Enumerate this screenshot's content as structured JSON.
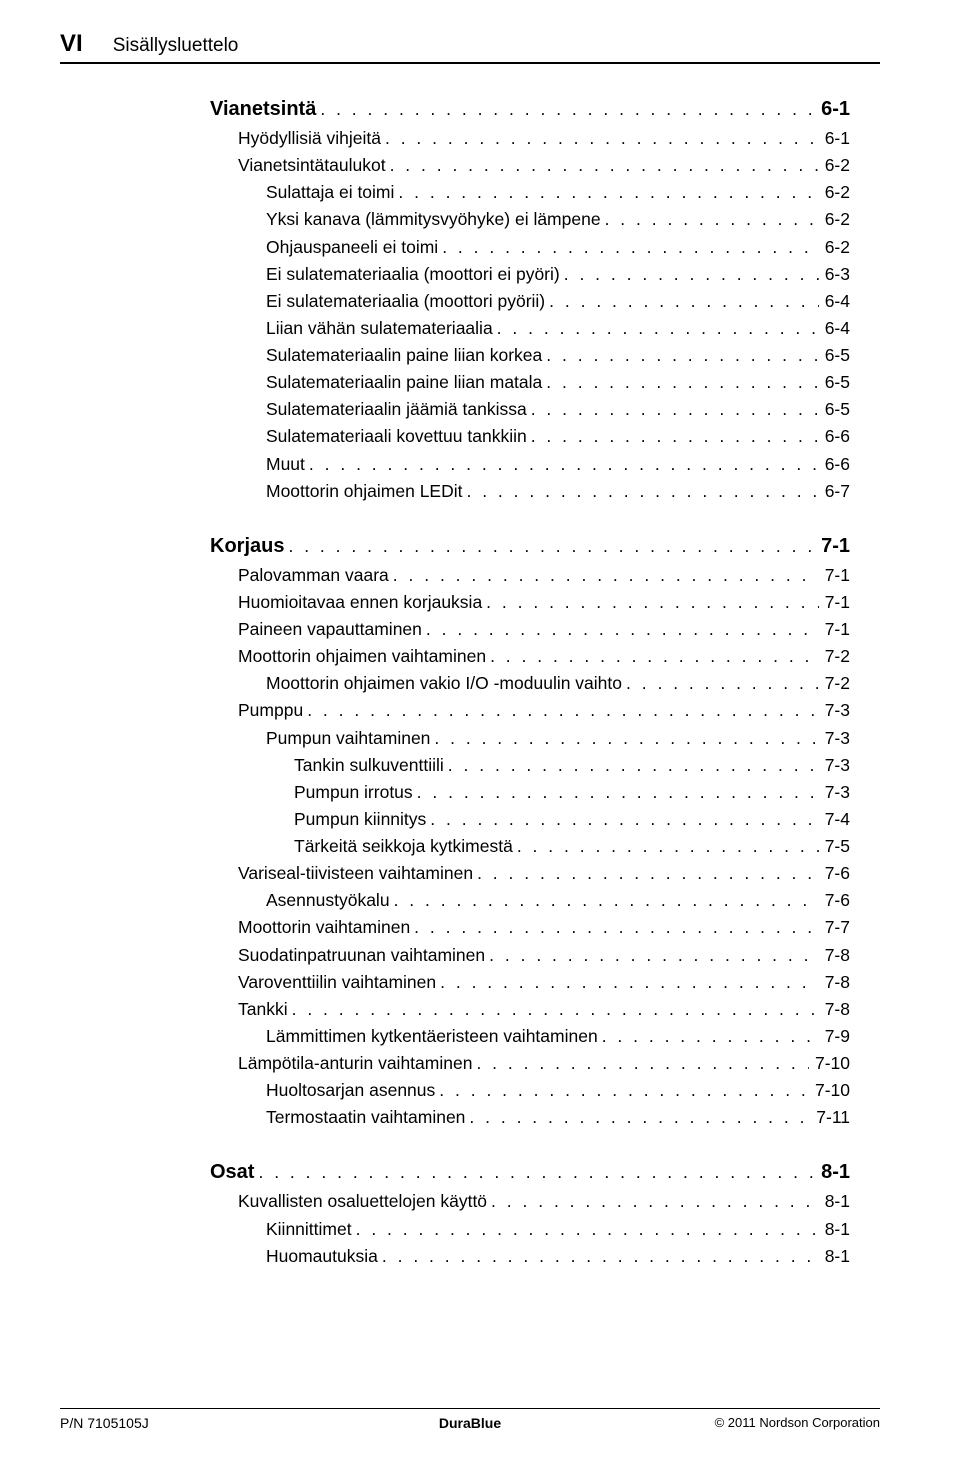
{
  "header": {
    "roman": "VI",
    "label": "Sisällysluettelo"
  },
  "sections": [
    {
      "heading": {
        "label": "Vianetsintä",
        "page": "6-1"
      },
      "items": [
        {
          "lvl": 1,
          "label": "Hyödyllisiä vihjeitä",
          "page": "6-1"
        },
        {
          "lvl": 1,
          "label": "Vianetsintätaulukot",
          "page": "6-2"
        },
        {
          "lvl": 2,
          "label": "Sulattaja ei toimi",
          "page": "6-2"
        },
        {
          "lvl": 2,
          "label": "Yksi kanava (lämmitysvyöhyke) ei lämpene",
          "page": "6-2"
        },
        {
          "lvl": 2,
          "label": "Ohjauspaneeli ei toimi",
          "page": "6-2"
        },
        {
          "lvl": 2,
          "label": "Ei sulatemateriaalia (moottori ei pyöri)",
          "page": "6-3"
        },
        {
          "lvl": 2,
          "label": "Ei sulatemateriaalia (moottori pyörii)",
          "page": "6-4"
        },
        {
          "lvl": 2,
          "label": "Liian vähän sulatemateriaalia",
          "page": "6-4"
        },
        {
          "lvl": 2,
          "label": "Sulatemateriaalin paine liian korkea",
          "page": "6-5"
        },
        {
          "lvl": 2,
          "label": "Sulatemateriaalin paine liian matala",
          "page": "6-5"
        },
        {
          "lvl": 2,
          "label": "Sulatemateriaalin jäämiä tankissa",
          "page": "6-5"
        },
        {
          "lvl": 2,
          "label": "Sulatemateriaali kovettuu tankkiin",
          "page": "6-6"
        },
        {
          "lvl": 2,
          "label": "Muut",
          "page": "6-6"
        },
        {
          "lvl": 2,
          "label": "Moottorin ohjaimen LEDit",
          "page": "6-7"
        }
      ]
    },
    {
      "heading": {
        "label": "Korjaus",
        "page": "7-1"
      },
      "items": [
        {
          "lvl": 1,
          "label": "Palovamman vaara",
          "page": "7-1"
        },
        {
          "lvl": 1,
          "label": "Huomioitavaa ennen korjauksia",
          "page": "7-1"
        },
        {
          "lvl": 1,
          "label": "Paineen vapauttaminen",
          "page": "7-1"
        },
        {
          "lvl": 1,
          "label": "Moottorin ohjaimen vaihtaminen",
          "page": "7-2"
        },
        {
          "lvl": 2,
          "label": "Moottorin ohjaimen vakio I/O -moduulin vaihto",
          "page": "7-2"
        },
        {
          "lvl": 1,
          "label": "Pumppu",
          "page": "7-3"
        },
        {
          "lvl": 2,
          "label": "Pumpun vaihtaminen",
          "page": "7-3"
        },
        {
          "lvl": 3,
          "label": "Tankin sulkuventtiili",
          "page": "7-3"
        },
        {
          "lvl": 3,
          "label": "Pumpun irrotus",
          "page": "7-3"
        },
        {
          "lvl": 3,
          "label": "Pumpun kiinnitys",
          "page": "7-4"
        },
        {
          "lvl": 3,
          "label": "Tärkeitä seikkoja kytkimestä",
          "page": "7-5"
        },
        {
          "lvl": 1,
          "label": "Variseal-tiivisteen vaihtaminen",
          "page": "7-6"
        },
        {
          "lvl": 2,
          "label": "Asennustyökalu",
          "page": "7-6"
        },
        {
          "lvl": 1,
          "label": "Moottorin vaihtaminen",
          "page": "7-7"
        },
        {
          "lvl": 1,
          "label": "Suodatinpatruunan vaihtaminen",
          "page": "7-8"
        },
        {
          "lvl": 1,
          "label": "Varoventtiilin vaihtaminen",
          "page": "7-8"
        },
        {
          "lvl": 1,
          "label": "Tankki",
          "page": "7-8"
        },
        {
          "lvl": 2,
          "label": "Lämmittimen kytkentäeristeen vaihtaminen",
          "page": "7-9"
        },
        {
          "lvl": 1,
          "label": "Lämpötila-anturin vaihtaminen",
          "page": "7-10"
        },
        {
          "lvl": 2,
          "label": "Huoltosarjan asennus",
          "page": "7-10"
        },
        {
          "lvl": 2,
          "label": "Termostaatin vaihtaminen",
          "page": "7-11"
        }
      ]
    },
    {
      "heading": {
        "label": "Osat",
        "page": "8-1"
      },
      "items": [
        {
          "lvl": 1,
          "label": "Kuvallisten osaluettelojen käyttö",
          "page": "8-1"
        },
        {
          "lvl": 2,
          "label": "Kiinnittimet",
          "page": "8-1"
        },
        {
          "lvl": 2,
          "label": "Huomautuksia",
          "page": "8-1"
        }
      ]
    }
  ],
  "footer": {
    "left": "P/N 7105105J",
    "center": "DuraBlue",
    "right": "© 2011 Nordson Corporation"
  }
}
